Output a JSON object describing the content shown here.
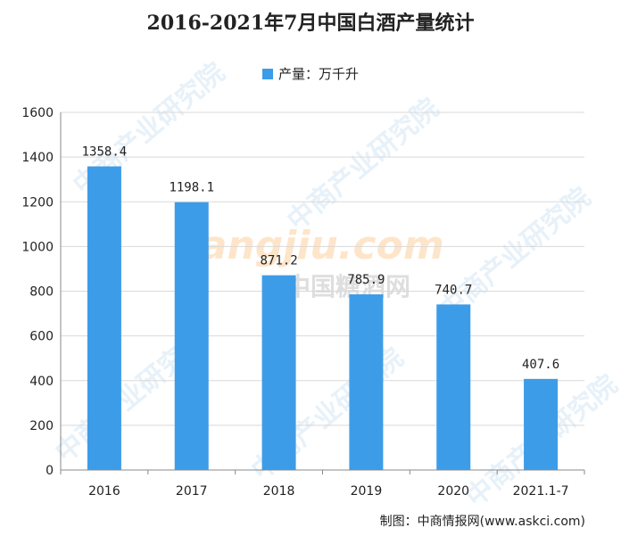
{
  "chart_data": {
    "type": "bar",
    "title": "2016-2021年7月中国白酒产量统计",
    "legend": {
      "position": "top-center",
      "series_name": "产量：万千升"
    },
    "categories": [
      "2016",
      "2017",
      "2018",
      "2019",
      "2020",
      "2021.1-7"
    ],
    "series": [
      {
        "name": "产量：万千升",
        "values": [
          1358.4,
          1198.1,
          871.2,
          785.9,
          740.7,
          407.6
        ],
        "color": "#3d9ce8"
      }
    ],
    "data_labels": [
      "1358.4",
      "1198.1",
      "871.2",
      "785.9",
      "740.7",
      "407.6"
    ],
    "ylim": [
      0,
      1600
    ],
    "yticks": [
      0,
      200,
      400,
      600,
      800,
      1000,
      1200,
      1400,
      1600
    ],
    "grid": true,
    "xlabel": "",
    "ylabel": ""
  },
  "footer": {
    "source": "制图：中商情报网(www.askci.com)"
  },
  "watermarks": {
    "brand": "中商产业研究院",
    "logo": "Tangjiu.com",
    "logo_sub": "中国糖酒网"
  },
  "colors": {
    "bar": "#3d9ce8",
    "grid": "#d9d9d9",
    "text": "#222222"
  }
}
